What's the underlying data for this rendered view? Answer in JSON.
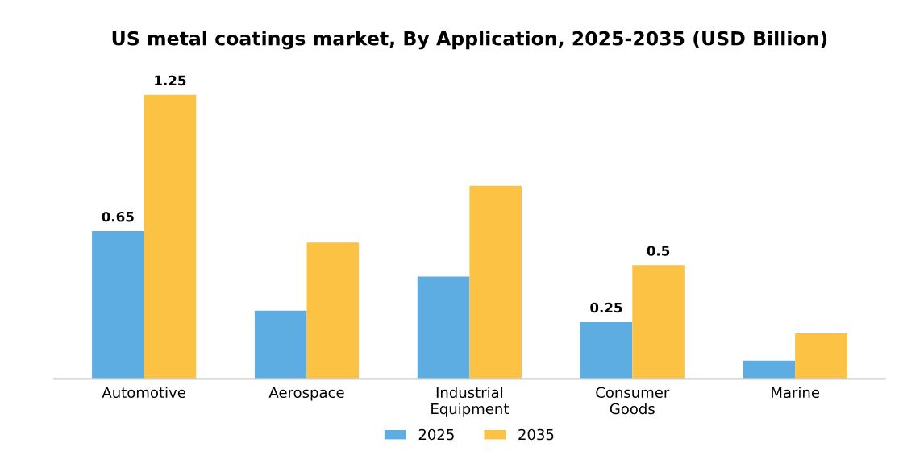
{
  "chart_data": {
    "type": "bar",
    "title": "US metal coatings market, By Application, 2025-2035 (USD Billion)",
    "categories": [
      "Automotive",
      "Aerospace",
      "Industrial\nEquipment",
      "Consumer\nGoods",
      "Marine"
    ],
    "series": [
      {
        "name": "2025",
        "color": "#5dade2",
        "values": [
          0.65,
          0.3,
          0.45,
          0.25,
          0.08
        ],
        "value_labels": [
          "0.65",
          null,
          null,
          "0.25",
          null
        ]
      },
      {
        "name": "2035",
        "color": "#fbc244",
        "values": [
          1.25,
          0.6,
          0.85,
          0.5,
          0.2
        ],
        "value_labels": [
          "1.25",
          null,
          null,
          "0.5",
          null
        ]
      }
    ],
    "legend": "bottom",
    "grid": false
  }
}
